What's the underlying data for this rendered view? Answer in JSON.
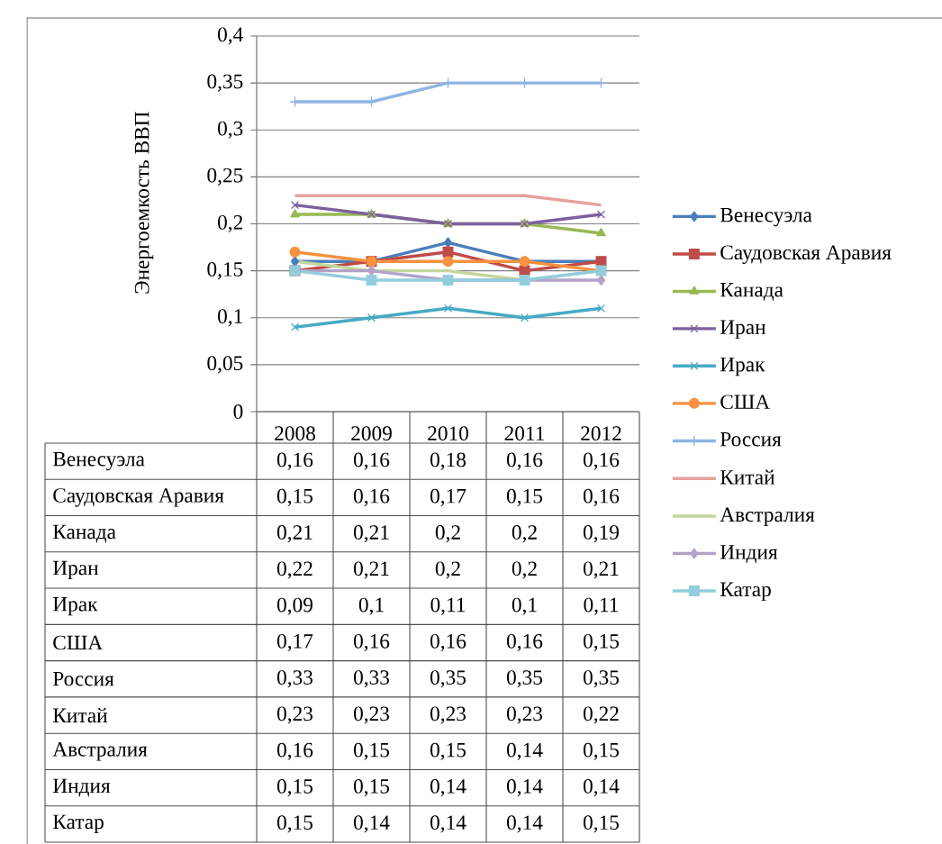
{
  "chart_data": {
    "type": "line",
    "ylabel": "Энергоемкость ВВП",
    "categories": [
      "2008",
      "2009",
      "2010",
      "2011",
      "2012"
    ],
    "ylim": [
      0,
      0.4
    ],
    "yticks": [
      0,
      {
        "value": 0.05,
        "label": "0,05"
      },
      {
        "value": 0.1,
        "label": "0,1"
      },
      {
        "value": 0.15,
        "label": "0,15"
      },
      {
        "value": 0.2,
        "label": "0,2"
      },
      {
        "value": 0.25,
        "label": "0,25"
      },
      {
        "value": 0.3,
        "label": "0,3"
      },
      {
        "value": 0.35,
        "label": "0,35"
      },
      {
        "value": 0.4,
        "label": "0,4"
      }
    ],
    "grid": "y",
    "legend": "right",
    "series": [
      {
        "name": "Венесуэла",
        "color": "#4a7ebb",
        "marker": "diamond",
        "values": [
          0.16,
          0.16,
          0.18,
          0.16,
          0.16
        ],
        "value_labels": [
          "0,16",
          "0,16",
          "0,18",
          "0,16",
          "0,16"
        ]
      },
      {
        "name": "Саудовская Аравия",
        "color": "#be4b48",
        "marker": "square",
        "values": [
          0.15,
          0.16,
          0.17,
          0.15,
          0.16
        ],
        "value_labels": [
          "0,15",
          "0,16",
          "0,17",
          "0,15",
          "0,16"
        ]
      },
      {
        "name": "Канада",
        "color": "#98b954",
        "marker": "triangle",
        "values": [
          0.21,
          0.21,
          0.2,
          0.2,
          0.19
        ],
        "value_labels": [
          "0,21",
          "0,21",
          "0,2",
          "0,2",
          "0,19"
        ]
      },
      {
        "name": "Иран",
        "color": "#7d60a0",
        "marker": "cross",
        "values": [
          0.22,
          0.21,
          0.2,
          0.2,
          0.21
        ],
        "value_labels": [
          "0,22",
          "0,21",
          "0,2",
          "0,2",
          "0,21"
        ]
      },
      {
        "name": "Ирак",
        "color": "#46aac5",
        "marker": "cross",
        "values": [
          0.09,
          0.1,
          0.11,
          0.1,
          0.11
        ],
        "value_labels": [
          "0,09",
          "0,1",
          "0,11",
          "0,1",
          "0,11"
        ]
      },
      {
        "name": "США",
        "color": "#f69240",
        "marker": "circle",
        "values": [
          0.17,
          0.16,
          0.16,
          0.16,
          0.15
        ],
        "value_labels": [
          "0,17",
          "0,16",
          "0,16",
          "0,16",
          "0,15"
        ]
      },
      {
        "name": "Россия",
        "color": "#8eb4e3",
        "marker": "plus",
        "values": [
          0.33,
          0.33,
          0.35,
          0.35,
          0.35
        ],
        "value_labels": [
          "0,33",
          "0,33",
          "0,35",
          "0,35",
          "0,35"
        ]
      },
      {
        "name": "Китай",
        "color": "#e6a09f",
        "marker": "none",
        "values": [
          0.23,
          0.23,
          0.23,
          0.23,
          0.22
        ],
        "value_labels": [
          "0,23",
          "0,23",
          "0,23",
          "0,23",
          "0,22"
        ]
      },
      {
        "name": "Австралия",
        "color": "#c3d69b",
        "marker": "none",
        "values": [
          0.16,
          0.15,
          0.15,
          0.14,
          0.15
        ],
        "value_labels": [
          "0,16",
          "0,15",
          "0,15",
          "0,14",
          "0,15"
        ]
      },
      {
        "name": "Индия",
        "color": "#b3a2c7",
        "marker": "diamond",
        "values": [
          0.15,
          0.15,
          0.14,
          0.14,
          0.14
        ],
        "value_labels": [
          "0,15",
          "0,15",
          "0,14",
          "0,14",
          "0,14"
        ]
      },
      {
        "name": "Катар",
        "color": "#93cddd",
        "marker": "square",
        "values": [
          0.15,
          0.14,
          0.14,
          0.14,
          0.15
        ],
        "value_labels": [
          "0,15",
          "0,14",
          "0,14",
          "0,14",
          "0,15"
        ]
      }
    ]
  }
}
